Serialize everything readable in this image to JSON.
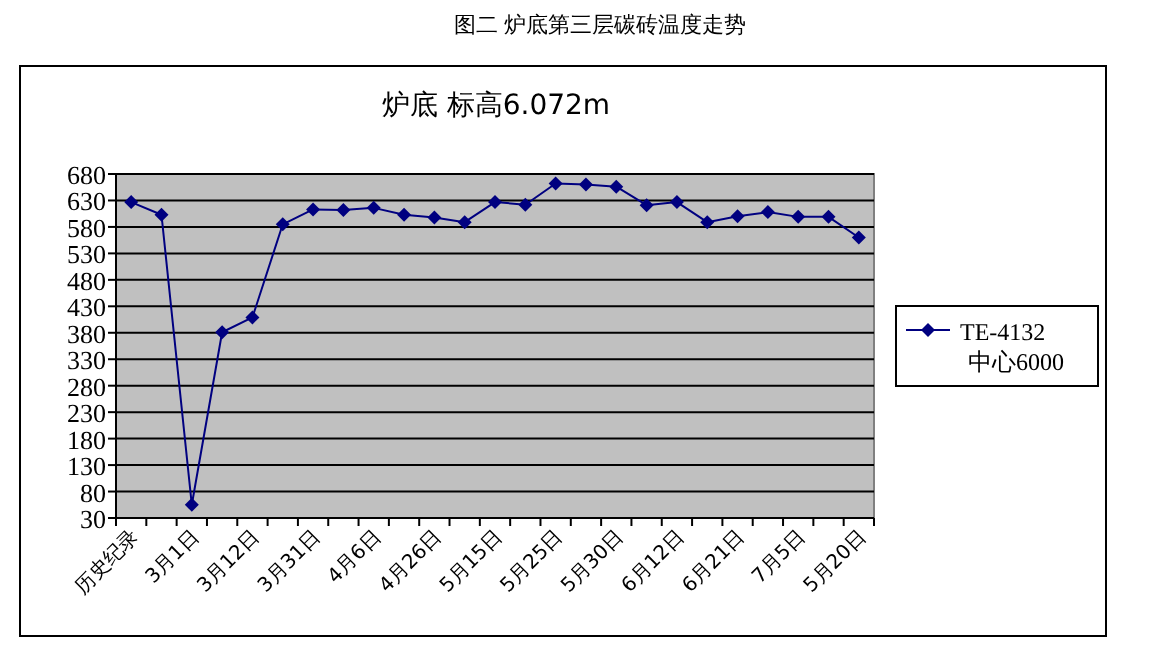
{
  "chart_data": {
    "type": "line",
    "title": "图二 炉底第三层碳砖温度走势",
    "subtitle": "炉底 标高6.072m",
    "categories": [
      "历史纪录",
      null,
      "3月1日",
      null,
      "3月12日",
      null,
      "3月31日",
      null,
      "4月6日",
      null,
      "4月26日",
      null,
      "5月15日",
      null,
      "5月25日",
      null,
      "5月30日",
      null,
      "6月12日",
      null,
      "6月21日",
      null,
      "7月5日",
      null,
      "5月20日"
    ],
    "series": [
      {
        "name": "TE-4132 中心6000",
        "color": "#000080",
        "values": [
          627,
          603,
          55,
          381,
          409,
          585,
          613,
          612,
          616,
          603,
          598,
          589,
          627,
          622,
          662,
          660,
          656,
          621,
          627,
          589,
          600,
          608,
          599,
          599,
          560
        ]
      }
    ],
    "ylim": [
      30,
      680
    ],
    "yticks": [
      30,
      80,
      130,
      180,
      230,
      280,
      330,
      380,
      430,
      480,
      530,
      580,
      630,
      680
    ],
    "grid": "y",
    "legend": "right",
    "marker": "diamond",
    "line_style": "solid"
  }
}
